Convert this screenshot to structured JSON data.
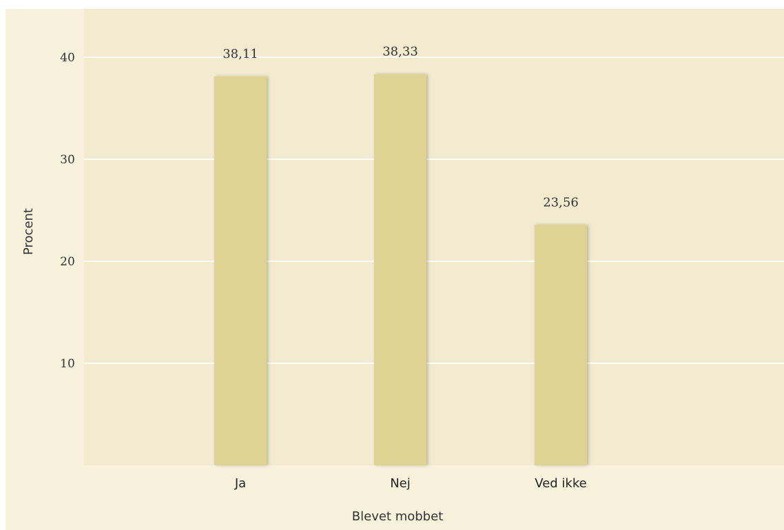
{
  "chart_data": {
    "type": "bar",
    "categories": [
      "Ja",
      "Nej",
      "Ved ikke"
    ],
    "values": [
      38.11,
      38.33,
      23.56
    ],
    "value_labels": [
      "38,11",
      "38,33",
      "23,56"
    ],
    "xlabel": "Blevet mobbet",
    "ylabel": "Procent",
    "yticks": [
      10,
      20,
      30,
      40
    ],
    "ytick_labels": [
      "10",
      "20",
      "30",
      "40"
    ],
    "ylim": [
      0,
      40
    ],
    "grid": true,
    "legend": "none",
    "colors": {
      "frame_background": "#f8f1dc",
      "plot_background": "#f2ebcf",
      "bar_fill": "#ded393",
      "grid_line": "#ffffff"
    }
  }
}
